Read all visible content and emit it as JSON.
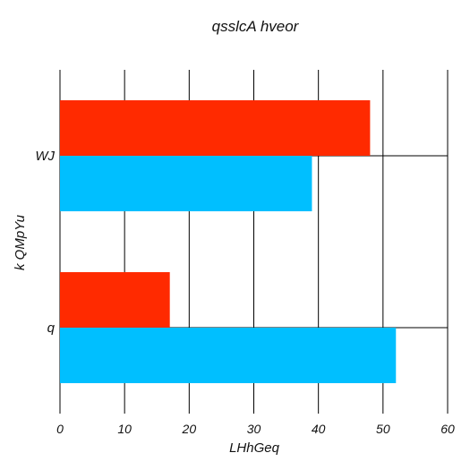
{
  "chart_data": {
    "type": "bar",
    "orientation": "horizontal",
    "title": "qsslcA hveor",
    "xlabel": "LHhGeq",
    "ylabel": "k QMpYu",
    "categories": [
      "q",
      "WJ"
    ],
    "series": [
      {
        "values": [
          17,
          48
        ],
        "color": "#ff2a00"
      },
      {
        "values": [
          52,
          39
        ],
        "color": "#00bfff"
      }
    ],
    "xlim": [
      0,
      60
    ],
    "xticks": [
      0,
      10,
      20,
      30,
      40,
      50,
      60
    ],
    "grid": true
  }
}
